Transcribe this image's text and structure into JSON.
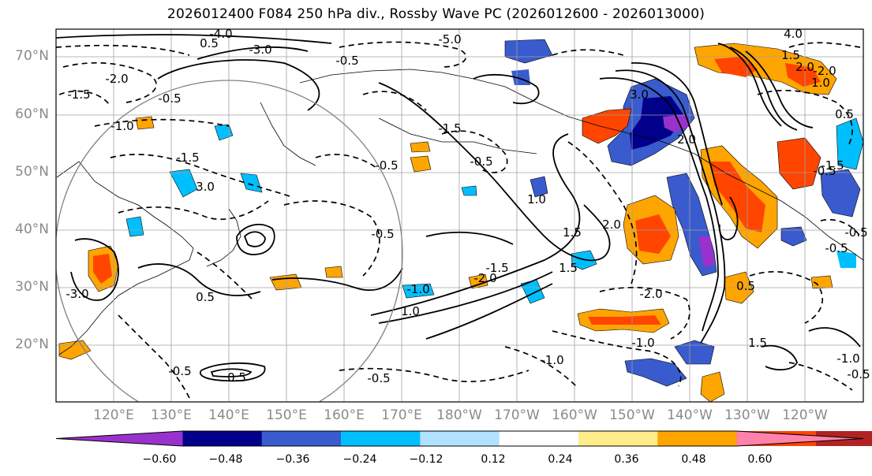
{
  "title": "2026012400 F084 250 hPa div., Rossby Wave PC (2026012600 - 2026013000)",
  "map": {
    "region": "North Pacific",
    "lat_labels": [
      "70°N",
      "60°N",
      "50°N",
      "40°N",
      "30°N",
      "20°N"
    ],
    "lon_labels": [
      "120°E",
      "130°E",
      "140°E",
      "150°E",
      "160°E",
      "170°E",
      "180°W",
      "170°W",
      "160°W",
      "150°W",
      "140°W",
      "130°W",
      "120°W"
    ],
    "contour_labels": [
      "-4.0",
      "-3.0",
      "-2.0",
      "-1.5",
      "-1.0",
      "-0.5",
      "-5.0",
      "4.0",
      "3.0",
      "2.0",
      "1.5",
      "1.0",
      "0.5",
      "-0.5",
      "-0.5",
      "-1.5",
      "1.0",
      "-1.0",
      "-0.5",
      "-2.0",
      "-1.5",
      "0.5",
      "-1.0",
      "1.5",
      "-0.5",
      "-0.5",
      "3.0",
      "-2.0",
      "1.5",
      "1.0",
      "0.5",
      "-0.5",
      "2.0",
      "-2.0",
      "-1.0",
      "-0.5",
      "-1.5",
      "0.5",
      "-0.5",
      "-1.5",
      "-3.0",
      "2.0",
      "-0.5",
      "0.5",
      "1.5",
      "-1.0",
      "-0.5"
    ],
    "colors": {
      "map_frame": "#000000",
      "grid": "#a0a0a0",
      "circle": "#808080",
      "contour": "#000000"
    }
  },
  "colorbar": {
    "ticks": [
      "−0.60",
      "−0.48",
      "−0.36",
      "−0.24",
      "−0.12",
      "0.12",
      "0.24",
      "0.36",
      "0.48",
      "0.60"
    ],
    "colors": [
      "#9932cc",
      "#00008b",
      "#3a5bcd",
      "#00bfff",
      "#b0e2ff",
      "#ffffff",
      "#ffec8b",
      "#ffa500",
      "#ff4500",
      "#b22222",
      "#ff82ab"
    ]
  }
}
